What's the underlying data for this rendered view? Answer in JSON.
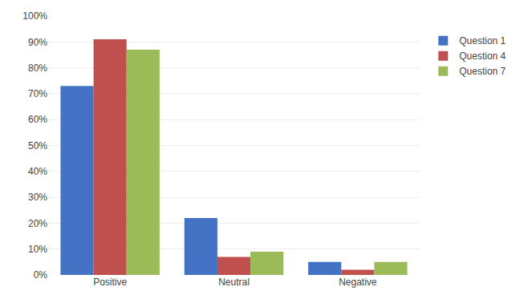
{
  "chart_data": {
    "type": "bar",
    "categories": [
      "Positive",
      "Neutral",
      "Negative"
    ],
    "series": [
      {
        "name": "Question 1",
        "color": "#4472C4",
        "values": [
          0.73,
          0.22,
          0.05
        ]
      },
      {
        "name": "Question 4",
        "color": "#C0504D",
        "values": [
          0.91,
          0.07,
          0.02
        ]
      },
      {
        "name": "Question 7",
        "color": "#9BBB59",
        "values": [
          0.87,
          0.09,
          0.05
        ]
      }
    ],
    "ylim": [
      0,
      1.0
    ],
    "yticks": [
      {
        "value": 0.0,
        "label": "0%"
      },
      {
        "value": 0.1,
        "label": "10%"
      },
      {
        "value": 0.2,
        "label": "20%"
      },
      {
        "value": 0.3,
        "label": "30%"
      },
      {
        "value": 0.4,
        "label": "40%"
      },
      {
        "value": 0.5,
        "label": "50%"
      },
      {
        "value": 0.6,
        "label": "60%"
      },
      {
        "value": 0.7,
        "label": "70%"
      },
      {
        "value": 0.8,
        "label": "80%"
      },
      {
        "value": 0.9,
        "label": "90%"
      },
      {
        "value": 1.0,
        "label": "100%"
      }
    ],
    "grid": true,
    "legend": "right"
  }
}
